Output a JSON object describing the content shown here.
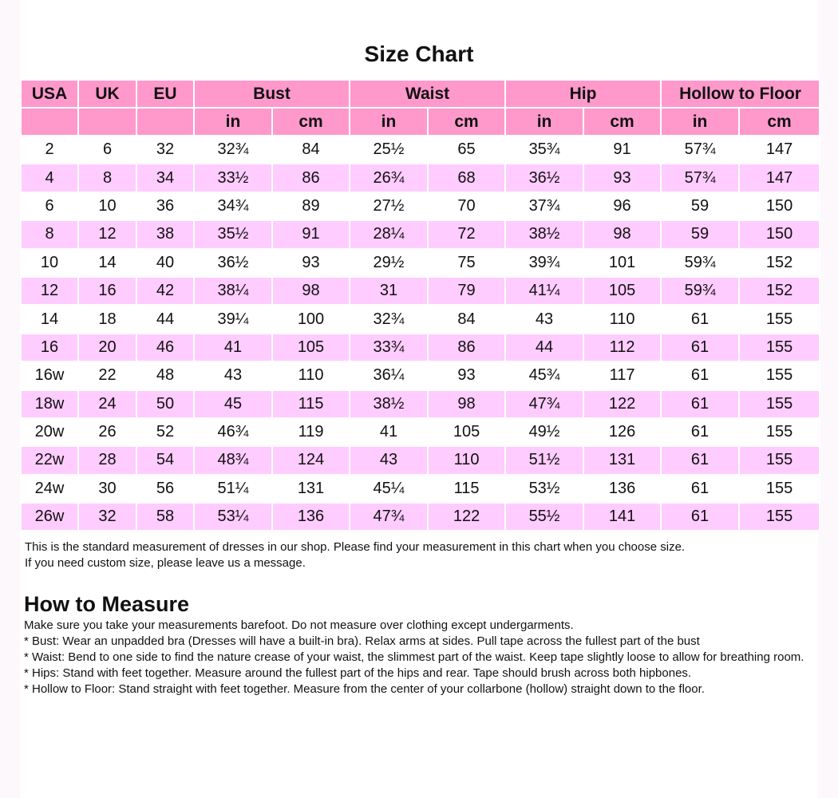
{
  "title": "Size Chart",
  "colors": {
    "header": "#ff99cc",
    "alt_row": "#ffccff"
  },
  "header": {
    "top": [
      "USA",
      "UK",
      "EU",
      "Bust",
      "Waist",
      "Hip",
      "Hollow to Floor"
    ],
    "units": [
      "",
      "",
      "",
      "in",
      "cm",
      "in",
      "cm",
      "in",
      "cm",
      "in",
      "cm"
    ]
  },
  "rows": [
    [
      "2",
      "6",
      "32",
      "32¾",
      "84",
      "25½",
      "65",
      "35¾",
      "91",
      "57¾",
      "147"
    ],
    [
      "4",
      "8",
      "34",
      "33½",
      "86",
      "26¾",
      "68",
      "36½",
      "93",
      "57¾",
      "147"
    ],
    [
      "6",
      "10",
      "36",
      "34¾",
      "89",
      "27½",
      "70",
      "37¾",
      "96",
      "59",
      "150"
    ],
    [
      "8",
      "12",
      "38",
      "35½",
      "91",
      "28¼",
      "72",
      "38½",
      "98",
      "59",
      "150"
    ],
    [
      "10",
      "14",
      "40",
      "36½",
      "93",
      "29½",
      "75",
      "39¾",
      "101",
      "59¾",
      "152"
    ],
    [
      "12",
      "16",
      "42",
      "38¼",
      "98",
      "31",
      "79",
      "41¼",
      "105",
      "59¾",
      "152"
    ],
    [
      "14",
      "18",
      "44",
      "39¼",
      "100",
      "32¾",
      "84",
      "43",
      "110",
      "61",
      "155"
    ],
    [
      "16",
      "20",
      "46",
      "41",
      "105",
      "33¾",
      "86",
      "44",
      "112",
      "61",
      "155"
    ],
    [
      "16w",
      "22",
      "48",
      "43",
      "110",
      "36¼",
      "93",
      "45¾",
      "117",
      "61",
      "155"
    ],
    [
      "18w",
      "24",
      "50",
      "45",
      "115",
      "38½",
      "98",
      "47¾",
      "122",
      "61",
      "155"
    ],
    [
      "20w",
      "26",
      "52",
      "46¾",
      "119",
      "41",
      "105",
      "49½",
      "126",
      "61",
      "155"
    ],
    [
      "22w",
      "28",
      "54",
      "48¾",
      "124",
      "43",
      "110",
      "51½",
      "131",
      "61",
      "155"
    ],
    [
      "24w",
      "30",
      "56",
      "51¼",
      "131",
      "45¼",
      "115",
      "53½",
      "136",
      "61",
      "155"
    ],
    [
      "26w",
      "32",
      "58",
      "53¼",
      "136",
      "47¾",
      "122",
      "55½",
      "141",
      "61",
      "155"
    ]
  ],
  "notes": [
    "This is the standard measurement of dresses in our shop. Please find your measurement in this chart when you choose size.",
    "If you need custom size, please leave us a message."
  ],
  "how_to_measure": {
    "heading": "How to Measure",
    "intro": "Make sure you take your measurements barefoot. Do not measure over clothing except undergarments.",
    "items": [
      "* Bust: Wear an unpadded bra (Dresses will have a built-in bra). Relax arms at sides. Pull tape across the fullest part of the bust",
      "* Waist: Bend to one side to find the nature crease of your waist, the slimmest part of the waist. Keep tape slightly loose to allow for breathing room.",
      "* Hips: Stand with feet together. Measure around the fullest part of the hips and rear. Tape should brush across both hipbones.",
      "* Hollow to Floor: Stand straight with feet together. Measure from the center of your collarbone (hollow) straight down to the floor."
    ]
  }
}
